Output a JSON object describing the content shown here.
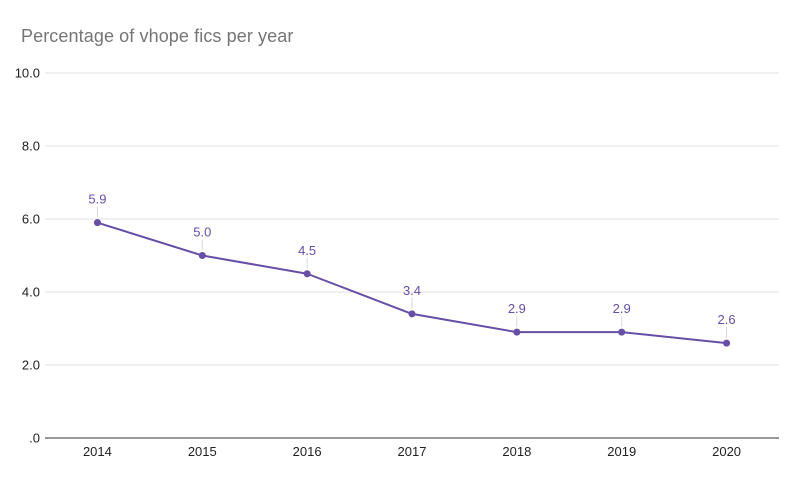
{
  "chart_data": {
    "type": "line",
    "title": "Percentage of vhope fics per year",
    "categories": [
      "2014",
      "2015",
      "2016",
      "2017",
      "2018",
      "2019",
      "2020"
    ],
    "series": [
      {
        "name": "Percentage of vhope fics",
        "values": [
          5.9,
          5.0,
          4.5,
          3.4,
          2.9,
          2.9,
          2.6
        ],
        "labels": [
          "5.9",
          "5.0",
          "4.5",
          "3.4",
          "2.9",
          "2.9",
          "2.6"
        ]
      }
    ],
    "xlabel": "",
    "ylabel": "",
    "ylim": [
      0,
      10
    ],
    "yticks": [
      {
        "value": 10,
        "label": "10.0"
      },
      {
        "value": 8,
        "label": "8.0"
      },
      {
        "value": 6,
        "label": "6.0"
      },
      {
        "value": 4,
        "label": "4.0"
      },
      {
        "value": 2,
        "label": "2.0"
      },
      {
        "value": 0,
        "label": ".0"
      }
    ],
    "grid": true,
    "legend": "none",
    "colors": {
      "series": "#674ea7",
      "data_label": "#674ea7",
      "grid": "#e0e0e0",
      "axis": "#333333",
      "title": "#757575",
      "tick_label": "#222222",
      "leader": "#d9d9d9",
      "background": "#ffffff"
    }
  }
}
